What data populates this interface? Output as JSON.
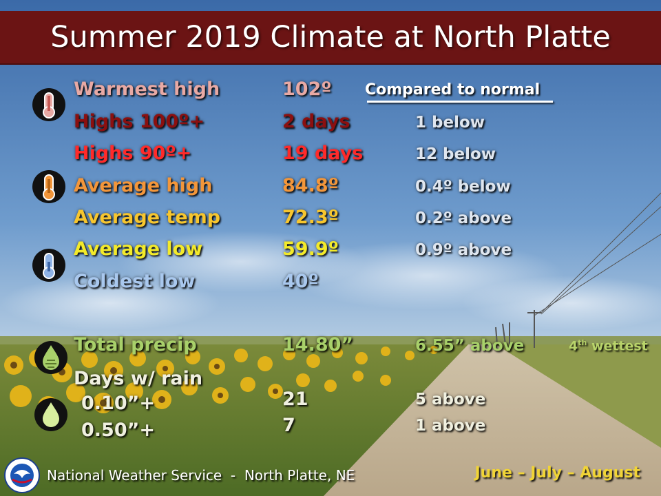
{
  "title": "Summer 2019 Climate at North Platte",
  "compare_header": "Compared to normal",
  "rows": [
    {
      "label": "Warmest high",
      "value": "102º",
      "compare": ""
    },
    {
      "label": "Highs 100º+",
      "value": "2 days",
      "compare": "1 below"
    },
    {
      "label": "Highs 90º+",
      "value": "19 days",
      "compare": "12 below"
    },
    {
      "label": "Average high",
      "value": "84.8º",
      "compare": "0.4º below"
    },
    {
      "label": "Average temp",
      "value": "72.3º",
      "compare": "0.2º above"
    },
    {
      "label": "Average low",
      "value": "59.9º",
      "compare": "0.9º above"
    },
    {
      "label": "Coldest low",
      "value": "40º",
      "compare": ""
    }
  ],
  "precip": {
    "label": "Total precip",
    "value": "14.80”",
    "compare": "6.55” above",
    "rank_num": "4",
    "rank_suffix": "th",
    "rank_word": " wettest"
  },
  "rain_days": {
    "label": "Days w/ rain",
    "rows": [
      {
        "label": "0.10”+",
        "value": "21",
        "compare": "5 above"
      },
      {
        "label": "0.50”+",
        "value": "7",
        "compare": "1 above"
      }
    ]
  },
  "footer": {
    "office": "National Weather Service  -  North Platte, NE",
    "months": "June – July – August"
  },
  "icons": [
    "thermometer-hot-icon",
    "thermometer-warm-icon",
    "thermometer-cold-icon",
    "rain-drop-icon",
    "water-drop-icon",
    "nws-logo-icon"
  ],
  "colors": {
    "banner": "#6b1414",
    "warmest_high": "#e8a9a4",
    "highs_100": "#8b1010",
    "highs_90": "#ff2a2a",
    "average_high": "#f3963a",
    "average_temp": "#f7c62e",
    "average_low": "#f3ea2a",
    "coldest_low": "#a9c8ee",
    "precip": "#a8d06a",
    "rain_days": "#f0f0e0",
    "months": "#f1d436"
  }
}
